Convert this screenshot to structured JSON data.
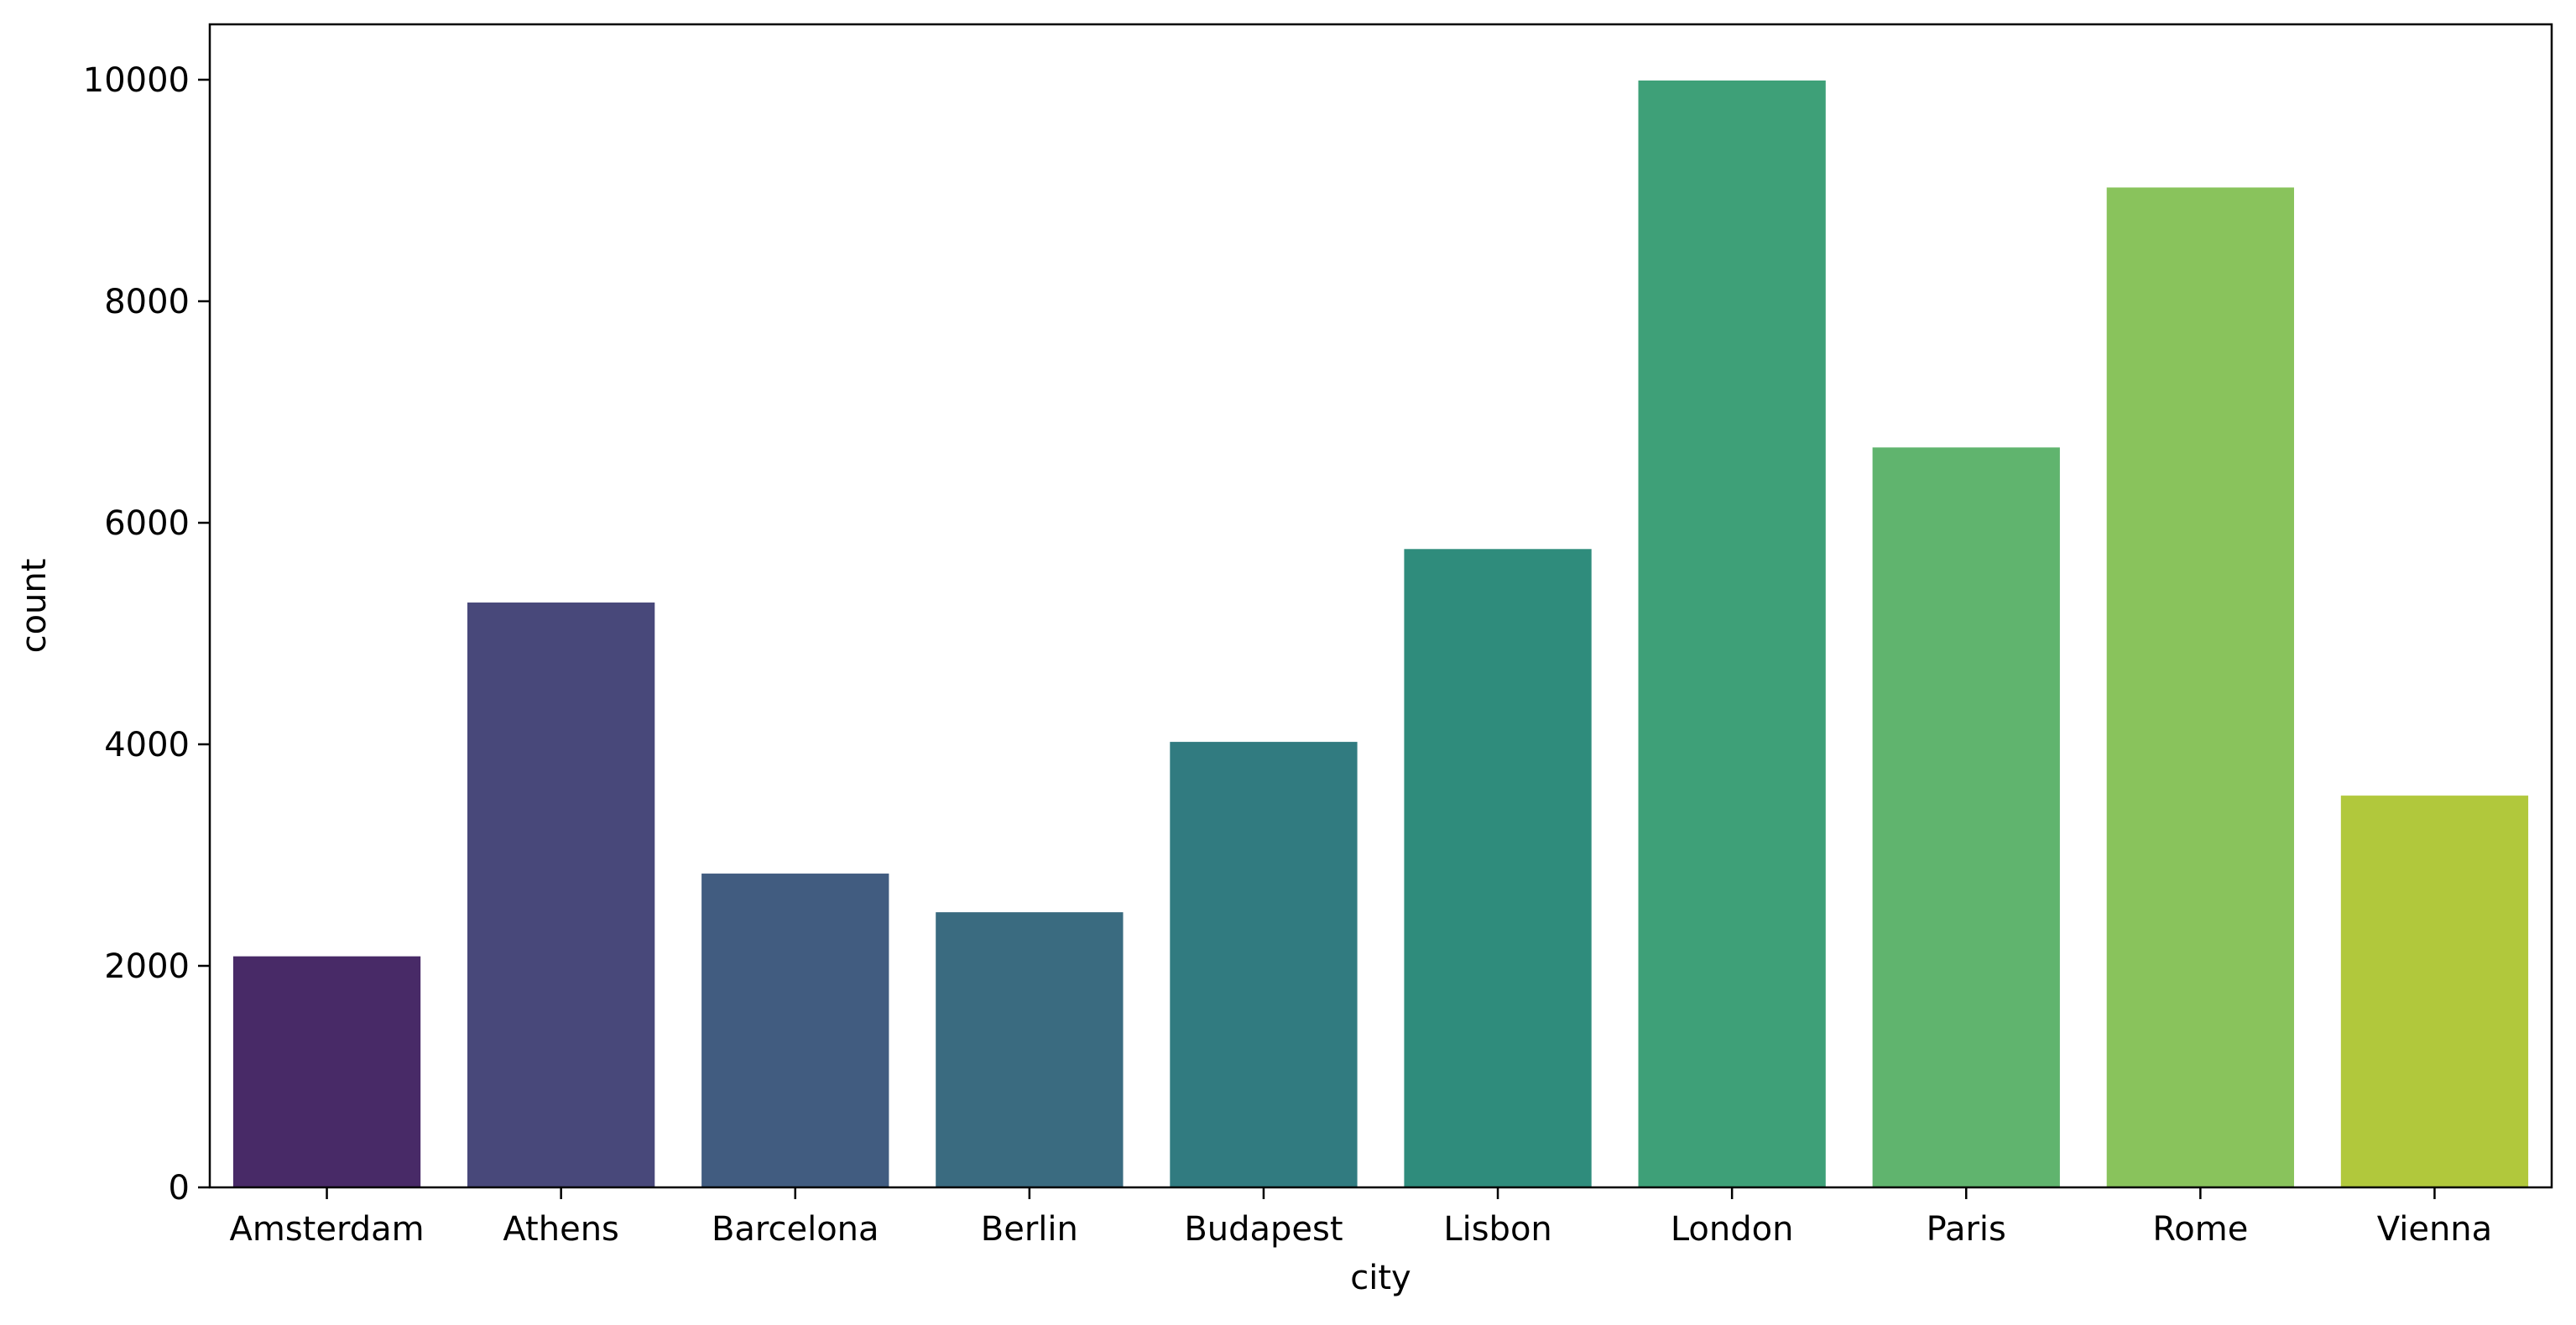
{
  "chart_data": {
    "type": "bar",
    "title": "",
    "xlabel": "city",
    "ylabel": "count",
    "categories": [
      "Amsterdam",
      "Athens",
      "Barcelona",
      "Berlin",
      "Budapest",
      "Lisbon",
      "London",
      "Paris",
      "Rome",
      "Vienna"
    ],
    "values": [
      2086,
      5280,
      2833,
      2484,
      4022,
      5763,
      9993,
      6680,
      9027,
      3537
    ],
    "colors": [
      "#482a67",
      "#48487a",
      "#415c80",
      "#3a6b80",
      "#317b80",
      "#2f8c7c",
      "#3ea078",
      "#60b46e",
      "#89c35c",
      "#b1c83c"
    ],
    "ylim": [
      0,
      10500
    ],
    "yticks": [
      0,
      2000,
      4000,
      6000,
      8000,
      10000
    ],
    "grid": false,
    "legend": "none"
  }
}
